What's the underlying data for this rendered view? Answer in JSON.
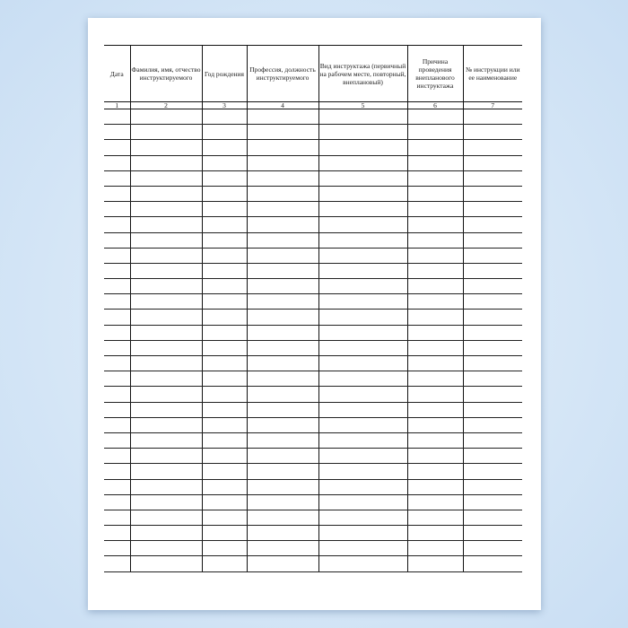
{
  "table": {
    "headers": [
      "Дата",
      "Фамилия, имя, отчество инструктируемого",
      "Год рождения",
      "Профессия, должность инструктируемого",
      "Вид инструктажа (первичный на рабочем месте, повторный, внеплановый)",
      "Причина проведения внепланового инструктажа",
      "№ инструкции или ее наименование"
    ],
    "column_numbers": [
      "1",
      "2",
      "3",
      "4",
      "5",
      "6",
      "7"
    ],
    "empty_row_count": 30
  }
}
